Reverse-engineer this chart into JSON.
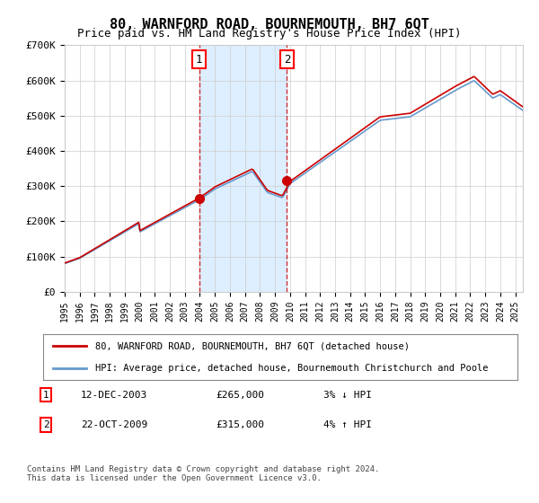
{
  "title": "80, WARNFORD ROAD, BOURNEMOUTH, BH7 6QT",
  "subtitle": "Price paid vs. HM Land Registry's House Price Index (HPI)",
  "legend_line1": "80, WARNFORD ROAD, BOURNEMOUTH, BH7 6QT (detached house)",
  "legend_line2": "HPI: Average price, detached house, Bournemouth Christchurch and Poole",
  "annotation1_date": "12-DEC-2003",
  "annotation1_price": "£265,000",
  "annotation1_hpi": "3% ↓ HPI",
  "annotation2_date": "22-OCT-2009",
  "annotation2_price": "£315,000",
  "annotation2_hpi": "4% ↑ HPI",
  "footnote": "Contains HM Land Registry data © Crown copyright and database right 2024.\nThis data is licensed under the Open Government Licence v3.0.",
  "x_start_year": 1995,
  "x_end_year": 2025,
  "y_min": 0,
  "y_max": 700000,
  "sale1_year": 2003.95,
  "sale1_value": 265000,
  "sale2_year": 2009.8,
  "sale2_value": 315000,
  "red_color": "#cc0000",
  "blue_color": "#6699cc",
  "highlight_color": "#ddeeff",
  "grid_color": "#cccccc",
  "background_color": "#ffffff"
}
